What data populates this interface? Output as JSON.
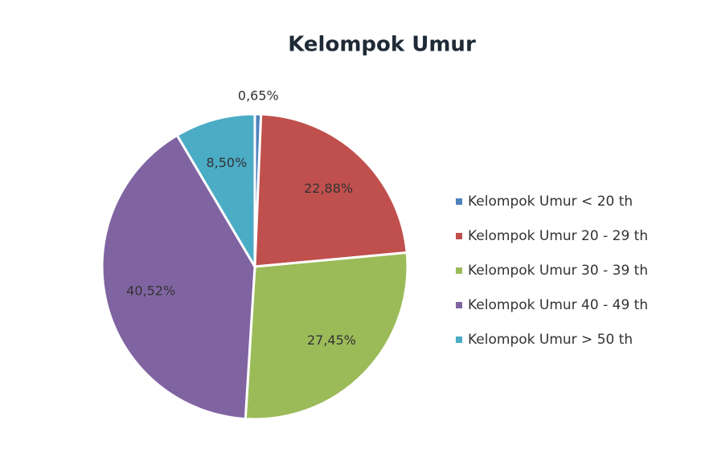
{
  "chart_data": {
    "type": "pie",
    "title": "Kelompok Umur",
    "categories": [
      "Kelompok Umur < 20 th",
      "Kelompok Umur 20 - 29 th",
      "Kelompok Umur 30 - 39 th",
      "Kelompok Umur 40 - 49 th",
      "Kelompok Umur > 50 th"
    ],
    "values": [
      0.65,
      22.88,
      27.45,
      40.52,
      8.5
    ],
    "value_labels": [
      "0,65%",
      "22,88%",
      "27,45%",
      "40,52%",
      "8,50%"
    ],
    "colors": [
      "#4f81bd",
      "#c0504d",
      "#9bbb59",
      "#8064a2",
      "#4bacc6"
    ],
    "legend": "right"
  }
}
